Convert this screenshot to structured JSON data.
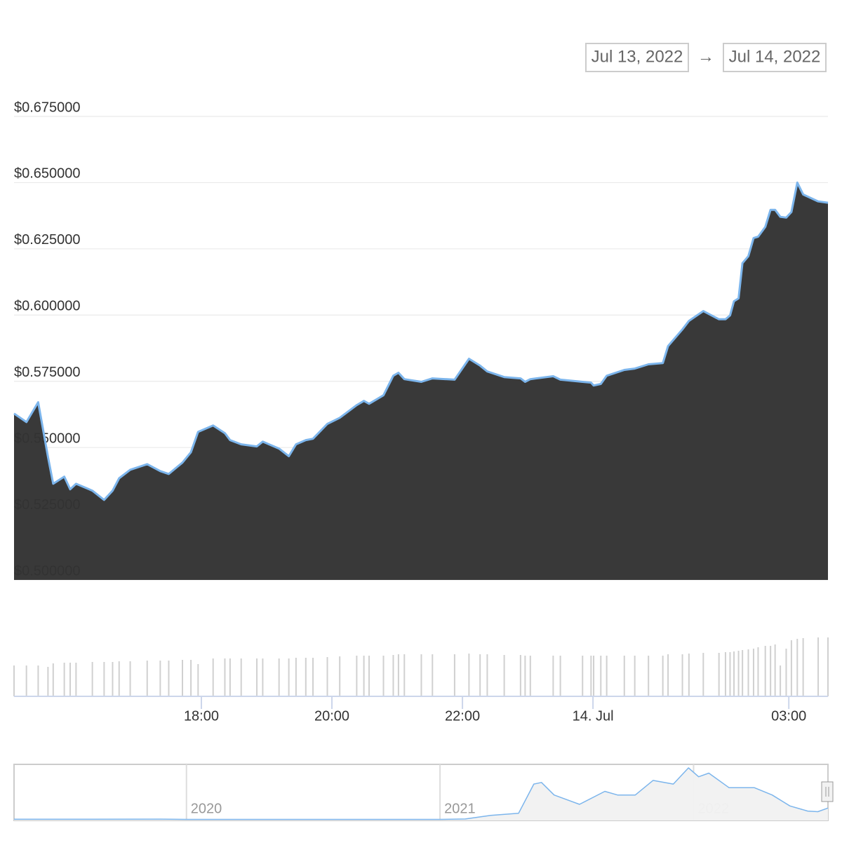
{
  "range": {
    "from": "Jul 13, 2022",
    "arrow": "→",
    "to": "Jul 14, 2022"
  },
  "chart_data": [
    {
      "type": "area",
      "color": "#7cb5ec",
      "fill": "#333333",
      "grid": true,
      "xlim": [
        15.13,
        27.6
      ],
      "xticks": [
        {
          "value": 18,
          "label": "18:00"
        },
        {
          "value": 20,
          "label": "20:00"
        },
        {
          "value": 22,
          "label": "22:00"
        },
        {
          "value": 24,
          "label": "14. Jul"
        },
        {
          "value": 27,
          "label": "03:00"
        }
      ],
      "ylim": [
        0.5,
        0.675
      ],
      "yticks": [
        {
          "value": 0.5,
          "label": "$0.500000"
        },
        {
          "value": 0.525,
          "label": "$0.525000"
        },
        {
          "value": 0.55,
          "label": "$0.550000"
        },
        {
          "value": 0.575,
          "label": "$0.575000"
        },
        {
          "value": 0.6,
          "label": "$0.600000"
        },
        {
          "value": 0.625,
          "label": "$0.625000"
        },
        {
          "value": 0.65,
          "label": "$0.650000"
        },
        {
          "value": 0.675,
          "label": "$0.675000"
        }
      ],
      "x": [
        15.13,
        15.32,
        15.5,
        15.65,
        15.73,
        15.9,
        15.99,
        16.08,
        16.33,
        16.51,
        16.64,
        16.74,
        16.91,
        17.17,
        17.37,
        17.5,
        17.71,
        17.84,
        17.95,
        18.18,
        18.36,
        18.44,
        18.61,
        18.85,
        18.94,
        19.19,
        19.34,
        19.45,
        19.6,
        19.71,
        19.93,
        20.12,
        20.38,
        20.49,
        20.57,
        20.79,
        20.94,
        21.02,
        21.11,
        21.37,
        21.54,
        21.88,
        22.1,
        22.27,
        22.38,
        22.64,
        22.89,
        22.96,
        23.04,
        23.39,
        23.5,
        23.84,
        23.97,
        24.01,
        24.12,
        24.21,
        24.48,
        24.64,
        24.85,
        25.07,
        25.15,
        25.37,
        25.47,
        25.69,
        25.93,
        26.03,
        26.1,
        26.16,
        26.23,
        26.29,
        26.38,
        26.46,
        26.53,
        26.64,
        26.72,
        26.79,
        26.87,
        26.96,
        27.04,
        27.13,
        27.22,
        27.45,
        27.6
      ],
      "values": [
        0.5628,
        0.5596,
        0.5671,
        0.5464,
        0.5363,
        0.539,
        0.5342,
        0.5363,
        0.5337,
        0.5302,
        0.5337,
        0.5384,
        0.5416,
        0.5437,
        0.5411,
        0.54,
        0.5443,
        0.5482,
        0.5559,
        0.5583,
        0.5554,
        0.5528,
        0.5512,
        0.5504,
        0.5522,
        0.5496,
        0.5467,
        0.5512,
        0.5528,
        0.5533,
        0.5589,
        0.5612,
        0.566,
        0.5676,
        0.5665,
        0.5697,
        0.5771,
        0.5782,
        0.5758,
        0.5748,
        0.5761,
        0.5756,
        0.5835,
        0.5809,
        0.5787,
        0.5766,
        0.5761,
        0.5748,
        0.5758,
        0.5769,
        0.5756,
        0.5748,
        0.5745,
        0.5734,
        0.574,
        0.5771,
        0.5793,
        0.5798,
        0.5814,
        0.5819,
        0.5883,
        0.5946,
        0.5978,
        0.6015,
        0.5984,
        0.5984,
        0.5999,
        0.6052,
        0.6063,
        0.6196,
        0.6222,
        0.6291,
        0.6296,
        0.6333,
        0.6397,
        0.6397,
        0.6371,
        0.6368,
        0.6389,
        0.65,
        0.6455,
        0.6429,
        0.6424
      ],
      "volume": [
        44,
        44,
        44,
        42,
        47,
        48,
        48,
        48,
        49,
        49,
        49,
        50,
        50,
        51,
        51,
        51,
        52,
        52,
        46,
        54,
        54,
        54,
        54,
        54,
        54,
        54,
        54,
        55,
        55,
        55,
        56,
        57,
        58,
        58,
        58,
        58,
        59,
        60,
        60,
        60,
        60,
        60,
        61,
        60,
        60,
        59,
        59,
        58,
        58,
        58,
        58,
        58,
        58,
        58,
        58,
        58,
        58,
        58,
        58,
        58,
        60,
        60,
        61,
        62,
        62,
        63,
        63,
        64,
        65,
        66,
        67,
        68,
        70,
        72,
        72,
        74,
        44,
        68,
        80,
        82,
        83,
        84,
        84
      ]
    },
    {
      "type": "area",
      "color": "#7cb5ec",
      "fill": "#f2f2f2",
      "xlim": [
        2019.32,
        2022.53
      ],
      "xticks": [
        2020,
        2021,
        2022
      ],
      "x": [
        2019.32,
        2019.6,
        2019.9,
        2020.0,
        2020.5,
        2021.0,
        2021.1,
        2021.2,
        2021.31,
        2021.37,
        2021.4,
        2021.45,
        2021.55,
        2021.65,
        2021.7,
        2021.77,
        2021.84,
        2021.92,
        2021.98,
        2022.02,
        2022.06,
        2022.14,
        2022.24,
        2022.31,
        2022.38,
        2022.45,
        2022.49,
        2022.53
      ],
      "values": [
        0.03,
        0.03,
        0.04,
        0.02,
        0.02,
        0.02,
        0.05,
        0.28,
        0.41,
        2.25,
        2.35,
        1.56,
        0.97,
        1.79,
        1.56,
        1.56,
        2.48,
        2.25,
        3.27,
        2.71,
        2.94,
        2.02,
        2.02,
        1.56,
        0.87,
        0.55,
        0.51,
        0.74
      ]
    }
  ]
}
